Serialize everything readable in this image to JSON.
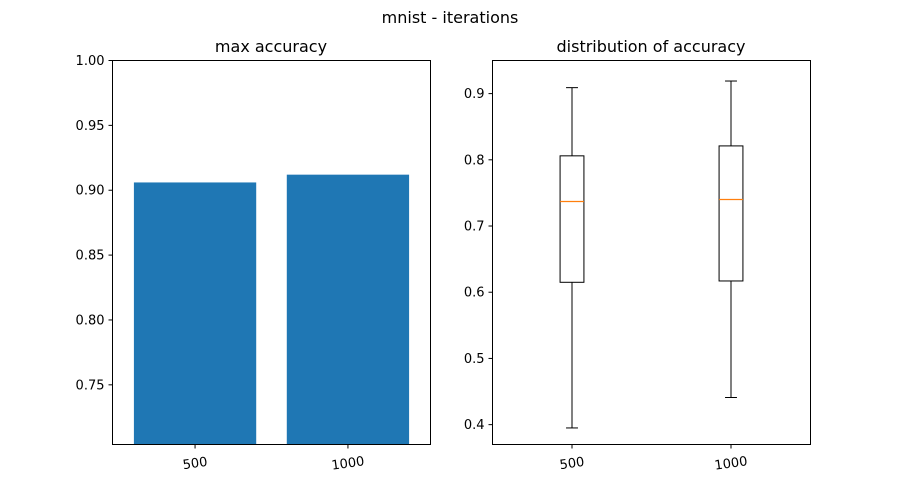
{
  "figure": {
    "suptitle": "mnist - iterations"
  },
  "chart_data": [
    {
      "type": "bar",
      "title": "max accuracy",
      "xlabel": "",
      "ylabel": "",
      "categories": [
        "500",
        "1000"
      ],
      "values": [
        0.906,
        0.912
      ],
      "ylim": [
        0.704,
        1.0
      ],
      "yticks": [
        0.75,
        0.8,
        0.85,
        0.9,
        0.95,
        1.0
      ],
      "ytick_labels": [
        "0.75",
        "0.80",
        "0.85",
        "0.90",
        "0.95",
        "1.00"
      ],
      "bar_color": "#1f77b4",
      "grid": false,
      "xtick_rotation_deg": -8
    },
    {
      "type": "box",
      "title": "distribution of accuracy",
      "xlabel": "",
      "ylabel": "",
      "categories": [
        "500",
        "1000"
      ],
      "boxes": [
        {
          "category": "500",
          "whisker_low": 0.395,
          "q1": 0.615,
          "median": 0.737,
          "q3": 0.806,
          "whisker_high": 0.909
        },
        {
          "category": "1000",
          "whisker_low": 0.441,
          "q1": 0.617,
          "median": 0.74,
          "q3": 0.821,
          "whisker_high": 0.919
        }
      ],
      "ylim": [
        0.37,
        0.95
      ],
      "yticks": [
        0.4,
        0.5,
        0.6,
        0.7,
        0.8,
        0.9
      ],
      "ytick_labels": [
        "0.4",
        "0.5",
        "0.6",
        "0.7",
        "0.8",
        "0.9"
      ],
      "median_color": "#ff7f0e",
      "box_color": "#000000",
      "grid": false,
      "xtick_rotation_deg": -8
    }
  ]
}
